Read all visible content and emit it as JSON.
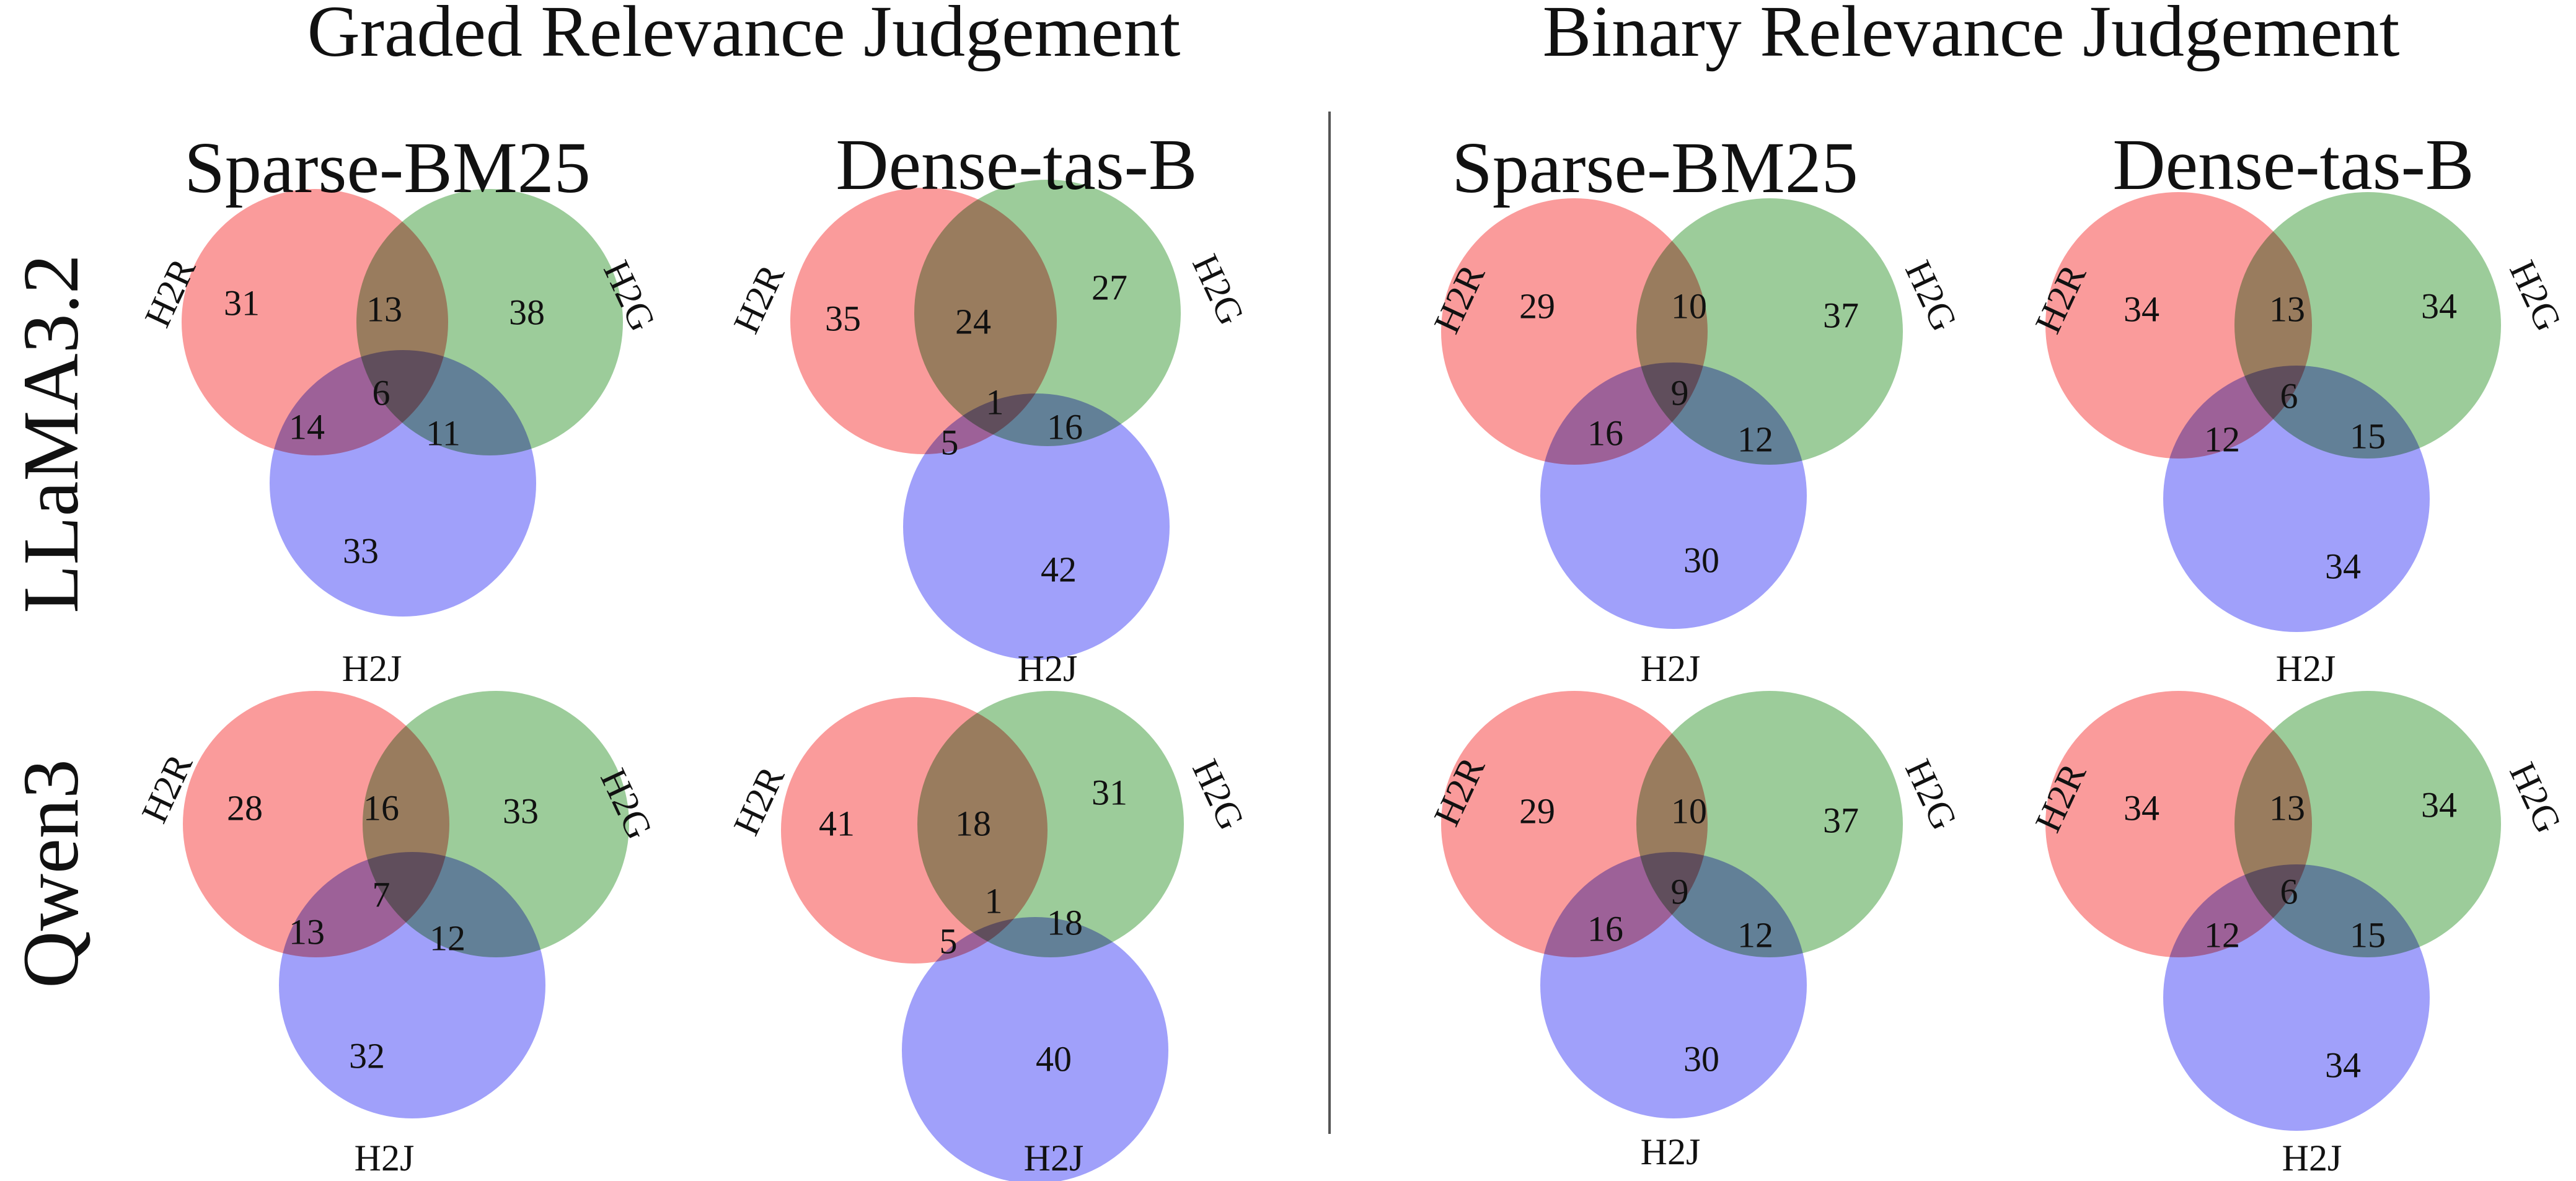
{
  "colors": {
    "H2R": "#fa9b9b",
    "H2G": "#9ccc9a",
    "H2J": "#a0a0fa"
  },
  "sections": [
    {
      "title": "Graded Relevance Judgement"
    },
    {
      "title": "Binary Relevance Judgement"
    }
  ],
  "methods": [
    "Sparse-BM25",
    "Dense-tas-B",
    "Sparse-BM25",
    "Dense-tas-B"
  ],
  "rows": [
    "LLaMA3.2",
    "Qwen3"
  ],
  "set_labels": {
    "a": "H2R",
    "b": "H2G",
    "c": "H2J"
  },
  "venns": [
    {
      "row": "LLaMA3.2",
      "section": "Graded Relevance Judgement",
      "method": "Sparse-BM25",
      "regions": {
        "a": 31,
        "ab": 13,
        "b": 38,
        "ac": 14,
        "abc": 6,
        "bc": 11,
        "c": 33
      }
    },
    {
      "row": "LLaMA3.2",
      "section": "Graded Relevance Judgement",
      "method": "Dense-tas-B",
      "regions": {
        "a": 35,
        "ab": 24,
        "b": 27,
        "ac": 5,
        "abc": 1,
        "bc": 16,
        "c": 42
      }
    },
    {
      "row": "LLaMA3.2",
      "section": "Binary Relevance Judgement",
      "method": "Sparse-BM25",
      "regions": {
        "a": 29,
        "ab": 10,
        "b": 37,
        "ac": 16,
        "abc": 9,
        "bc": 12,
        "c": 30
      }
    },
    {
      "row": "LLaMA3.2",
      "section": "Binary Relevance Judgement",
      "method": "Dense-tas-B",
      "regions": {
        "a": 34,
        "ab": 13,
        "b": 34,
        "ac": 12,
        "abc": 6,
        "bc": 15,
        "c": 34
      }
    },
    {
      "row": "Qwen3",
      "section": "Graded Relevance Judgement",
      "method": "Sparse-BM25",
      "regions": {
        "a": 28,
        "ab": 16,
        "b": 33,
        "ac": 13,
        "abc": 7,
        "bc": 12,
        "c": 32
      }
    },
    {
      "row": "Qwen3",
      "section": "Graded Relevance Judgement",
      "method": "Dense-tas-B",
      "regions": {
        "a": 41,
        "ab": 18,
        "b": 31,
        "ac": 5,
        "abc": 1,
        "bc": 18,
        "c": 40
      }
    },
    {
      "row": "Qwen3",
      "section": "Binary Relevance Judgement",
      "method": "Sparse-BM25",
      "regions": {
        "a": 29,
        "ab": 10,
        "b": 37,
        "ac": 16,
        "abc": 9,
        "bc": 12,
        "c": 30
      }
    },
    {
      "row": "Qwen3",
      "section": "Binary Relevance Judgement",
      "method": "Dense-tas-B",
      "regions": {
        "a": 34,
        "ab": 13,
        "b": 34,
        "ac": 12,
        "abc": 6,
        "bc": 15,
        "c": 34
      }
    }
  ]
}
